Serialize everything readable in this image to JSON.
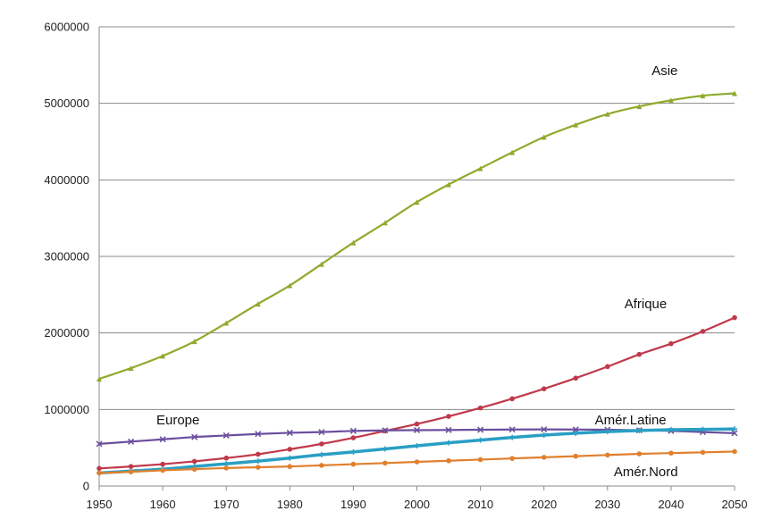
{
  "chart_data": {
    "type": "line",
    "title": "",
    "xlabel": "",
    "ylabel": "",
    "xlim": [
      1950,
      2050
    ],
    "ylim": [
      0,
      6000000
    ],
    "grid": true,
    "x_ticks": [
      "1950",
      "1960",
      "1970",
      "1980",
      "1990",
      "2000",
      "2010",
      "2020",
      "2030",
      "2040",
      "2050"
    ],
    "y_ticks": [
      "0",
      "1000000",
      "2000000",
      "3000000",
      "4000000",
      "5000000",
      "6000000"
    ],
    "x": [
      1950,
      1955,
      1960,
      1965,
      1970,
      1975,
      1980,
      1985,
      1990,
      1995,
      2000,
      2005,
      2010,
      2015,
      2020,
      2025,
      2030,
      2035,
      2040,
      2045,
      2050
    ],
    "series": [
      {
        "name": "Asie",
        "color": "#8faa2e",
        "marker": "triangle",
        "values": [
          1400000,
          1540000,
          1700000,
          1890000,
          2130000,
          2380000,
          2620000,
          2900000,
          3180000,
          3440000,
          3710000,
          3940000,
          4150000,
          4360000,
          4560000,
          4720000,
          4860000,
          4960000,
          5040000,
          5100000,
          5130000
        ]
      },
      {
        "name": "Afrique",
        "color": "#c0394b",
        "marker": "circle",
        "values": [
          230000,
          255000,
          285000,
          322000,
          365000,
          415000,
          480000,
          550000,
          630000,
          720000,
          810000,
          910000,
          1020000,
          1140000,
          1270000,
          1410000,
          1560000,
          1720000,
          1860000,
          2020000,
          2200000
        ]
      },
      {
        "name": "Europe",
        "color": "#6b4f9e",
        "marker": "x",
        "values": [
          550000,
          580000,
          610000,
          640000,
          660000,
          680000,
          695000,
          705000,
          720000,
          727000,
          730000,
          732000,
          735000,
          738000,
          740000,
          738000,
          735000,
          728000,
          720000,
          705000,
          690000
        ]
      },
      {
        "name": "Amér.Latine",
        "color": "#2a9fc4",
        "marker": "cross",
        "values": [
          170000,
          195000,
          220000,
          255000,
          290000,
          325000,
          365000,
          410000,
          445000,
          485000,
          525000,
          565000,
          600000,
          635000,
          665000,
          690000,
          710000,
          725000,
          735000,
          740000,
          745000
        ]
      },
      {
        "name": "Amér.Nord",
        "color": "#e0802e",
        "marker": "circle",
        "values": [
          170000,
          185000,
          205000,
          220000,
          235000,
          245000,
          255000,
          270000,
          285000,
          300000,
          315000,
          330000,
          345000,
          360000,
          375000,
          390000,
          405000,
          420000,
          430000,
          440000,
          450000
        ]
      }
    ],
    "labels": [
      {
        "text": "Asie",
        "series": "Asie"
      },
      {
        "text": "Afrique",
        "series": "Afrique"
      },
      {
        "text": "Europe",
        "series": "Europe"
      },
      {
        "text": "Amér.Latine",
        "series": "Amér.Latine"
      },
      {
        "text": "Amér.Nord",
        "series": "Amér.Nord"
      }
    ]
  }
}
